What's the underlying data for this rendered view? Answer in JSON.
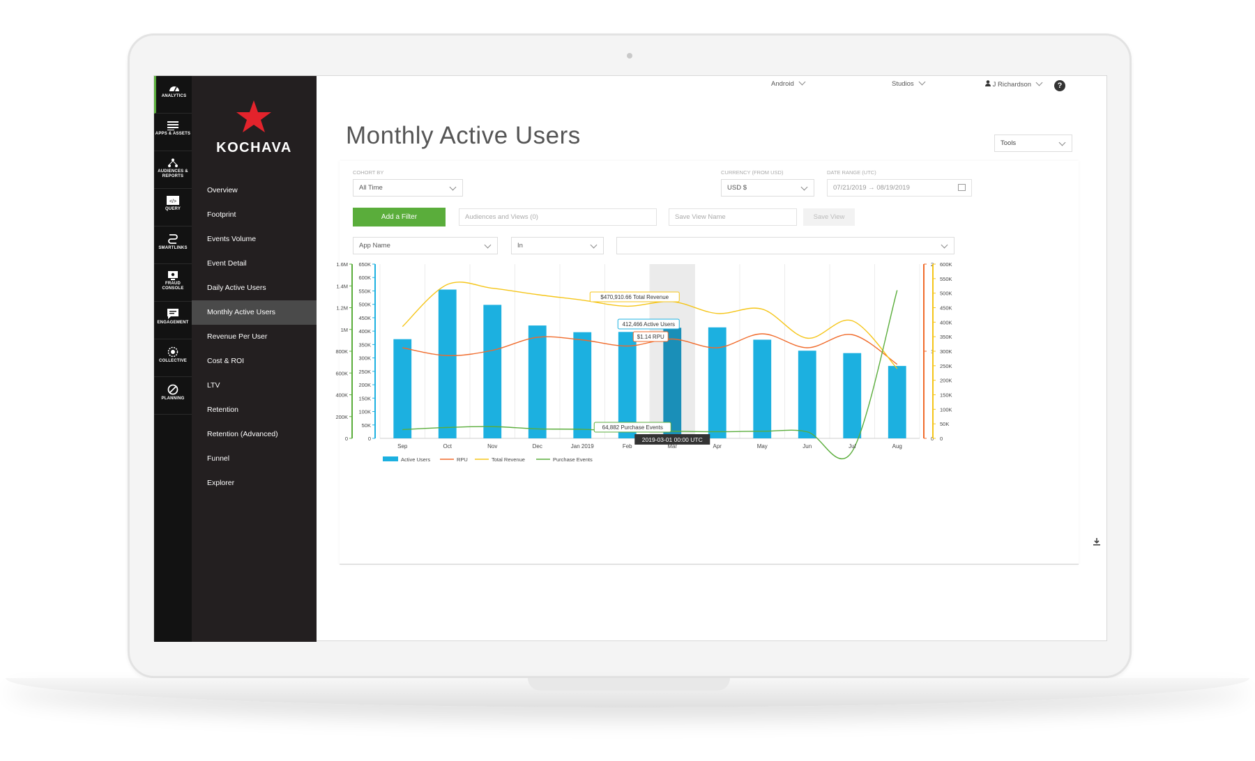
{
  "topbar": {
    "app": "Android",
    "org": "Studios",
    "user": "J Richardson",
    "help": "?"
  },
  "rail": [
    {
      "label": "ANALYTICS",
      "icon": "dashboard-gauge-icon"
    },
    {
      "label": "APPS & ASSETS",
      "icon": "list-icon"
    },
    {
      "label": "AUDIENCES & REPORTS",
      "icon": "audience-tree-icon"
    },
    {
      "label": "QUERY",
      "icon": "code-window-icon"
    },
    {
      "label": "SMARTLINKS",
      "icon": "smartlink-icon"
    },
    {
      "label": "FRAUD CONSOLE",
      "icon": "fraud-monitor-icon"
    },
    {
      "label": "ENGAGEMENT",
      "icon": "chat-bubble-icon"
    },
    {
      "label": "COLLECTIVE",
      "icon": "collective-circle-icon"
    },
    {
      "label": "PLANNING",
      "icon": "planning-compass-icon"
    }
  ],
  "brand": "KOCHAVA",
  "nav": [
    "Overview",
    "Footprint",
    "Events Volume",
    "Event Detail",
    "Daily Active Users",
    "Monthly Active Users",
    "Revenue Per User",
    "Cost & ROI",
    "LTV",
    "Retention",
    "Retention (Advanced)",
    "Funnel",
    "Explorer"
  ],
  "page": {
    "title": "Monthly Active Users",
    "tools": "Tools"
  },
  "filters": {
    "cohort_label": "COHORT BY",
    "cohort_value": "All Time",
    "currency_label": "CURRENCY (FROM USD)",
    "currency_value": "USD $",
    "date_label": "DATE RANGE (UTC)",
    "date_value": "07/21/2019 → 08/19/2019",
    "add_filter": "Add a Filter",
    "audiences_placeholder": "Audiences and Views (0)",
    "save_view_placeholder": "Save View Name",
    "save_view": "Save View",
    "field_value": "App Name",
    "operator_value": "In",
    "values_value": ""
  },
  "colors": {
    "active_users": "#1cb0e0",
    "rpu": "#f06a2a",
    "revenue": "#f5c518",
    "purchases": "#5aad3b",
    "highlight": "#1a8fb8"
  },
  "chart_data": {
    "type": "bar",
    "categories": [
      "Sep",
      "Oct",
      "Nov",
      "Dec",
      "Jan 2019",
      "Feb",
      "Mar",
      "Apr",
      "May",
      "Jun",
      "Jul",
      "Aug"
    ],
    "series": [
      {
        "name": "Active Users",
        "type": "bar",
        "axis": "active",
        "values": [
          370000,
          555000,
          498000,
          421000,
          396000,
          397000,
          412466,
          414000,
          368000,
          327000,
          318000,
          270000
        ]
      },
      {
        "name": "RPU",
        "type": "line",
        "axis": "rpu",
        "values": [
          1.04,
          0.95,
          1.01,
          1.16,
          1.13,
          1.06,
          1.14,
          1.04,
          1.2,
          1.04,
          1.19,
          0.85
        ]
      },
      {
        "name": "Total Revenue",
        "type": "line",
        "axis": "revenue",
        "values": [
          385000,
          530000,
          517000,
          495000,
          476000,
          455000,
          470910.66,
          430000,
          445000,
          345000,
          405000,
          240000
        ]
      },
      {
        "name": "Purchase Events",
        "type": "line",
        "axis": "events",
        "values": [
          80000,
          100000,
          108000,
          87000,
          83000,
          66000,
          64882,
          61000,
          65000,
          60000,
          -120000,
          1360000
        ]
      }
    ],
    "axes": {
      "events": {
        "ticks": [
          "0",
          "200K",
          "400K",
          "600K",
          "800K",
          "1M",
          "1.2M",
          "1.4M",
          "1.6M"
        ],
        "ylim": [
          0,
          1600000
        ]
      },
      "active": {
        "ticks": [
          "0",
          "50K",
          "100K",
          "150K",
          "200K",
          "250K",
          "300K",
          "350K",
          "400K",
          "450K",
          "500K",
          "550K",
          "600K",
          "650K"
        ],
        "ylim": [
          0,
          650000
        ]
      },
      "rpu": {
        "ticks": [
          "0",
          "1",
          "2"
        ],
        "ylim": [
          0,
          2
        ]
      },
      "revenue": {
        "ticks": [
          "0",
          "50K",
          "100K",
          "150K",
          "200K",
          "250K",
          "300K",
          "350K",
          "400K",
          "450K",
          "500K",
          "550K",
          "600K"
        ],
        "ylim": [
          0,
          600000
        ]
      }
    },
    "highlight_index": 6,
    "tooltips": {
      "revenue": "$470,910.66 Total Revenue",
      "active": "412,466 Active Users",
      "rpu": "$1.14 RPU",
      "events": "64,882 Purchase Events",
      "date": "2019-03-01 00:00 UTC"
    },
    "legend": [
      "Active Users",
      "RPU",
      "Total Revenue",
      "Purchase Events"
    ],
    "legend_position": "bottom-left",
    "grid": "vertical"
  },
  "download_icon": "download-icon"
}
